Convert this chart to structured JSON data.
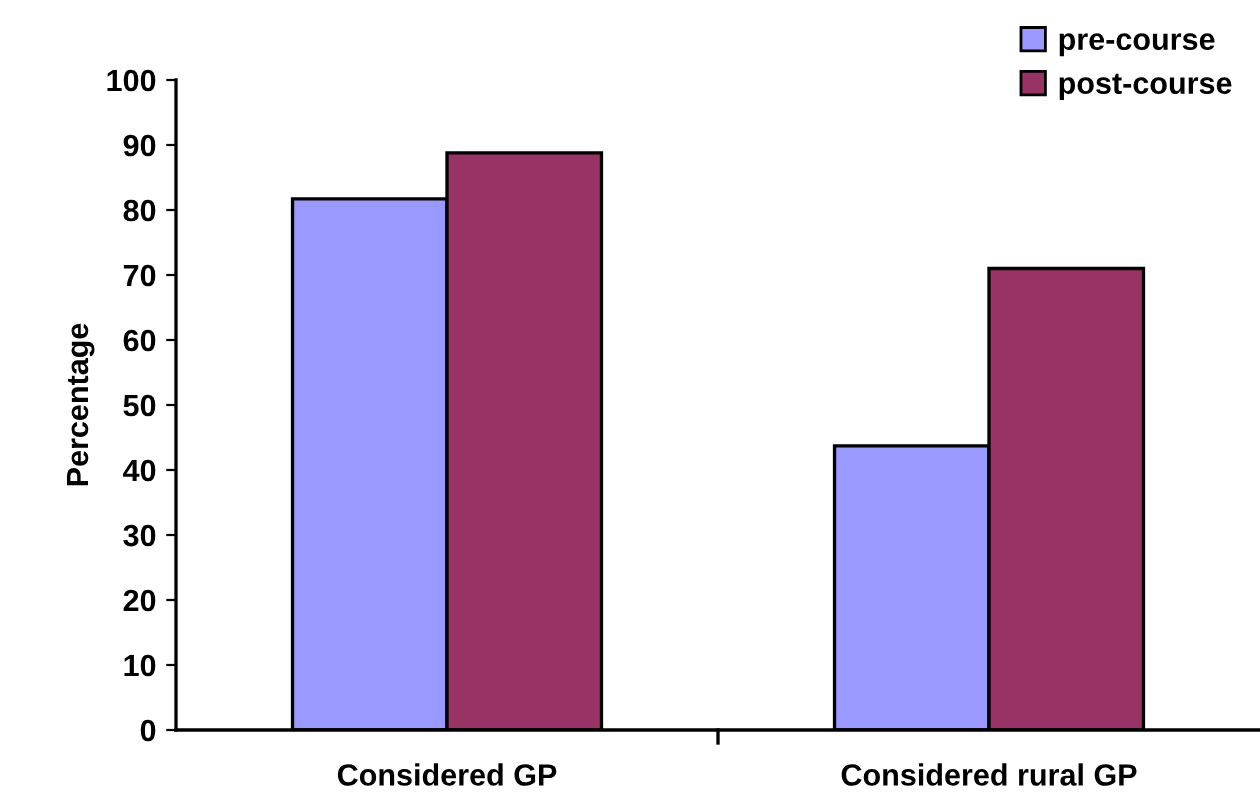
{
  "chart_data": {
    "type": "bar",
    "ylabel": "Percentage",
    "categories": [
      "Considered GP",
      "Considered rural GP"
    ],
    "series": [
      {
        "name": "pre-course",
        "color": "#9999ff",
        "values": [
          81.7,
          43.7
        ]
      },
      {
        "name": "post-course",
        "color": "#993366",
        "values": [
          88.8,
          71.0
        ]
      }
    ],
    "ylim": [
      0,
      100
    ],
    "yticks": [
      0,
      10,
      20,
      30,
      40,
      50,
      60,
      70,
      80,
      90,
      100
    ],
    "grid": false,
    "legend": "top right"
  }
}
